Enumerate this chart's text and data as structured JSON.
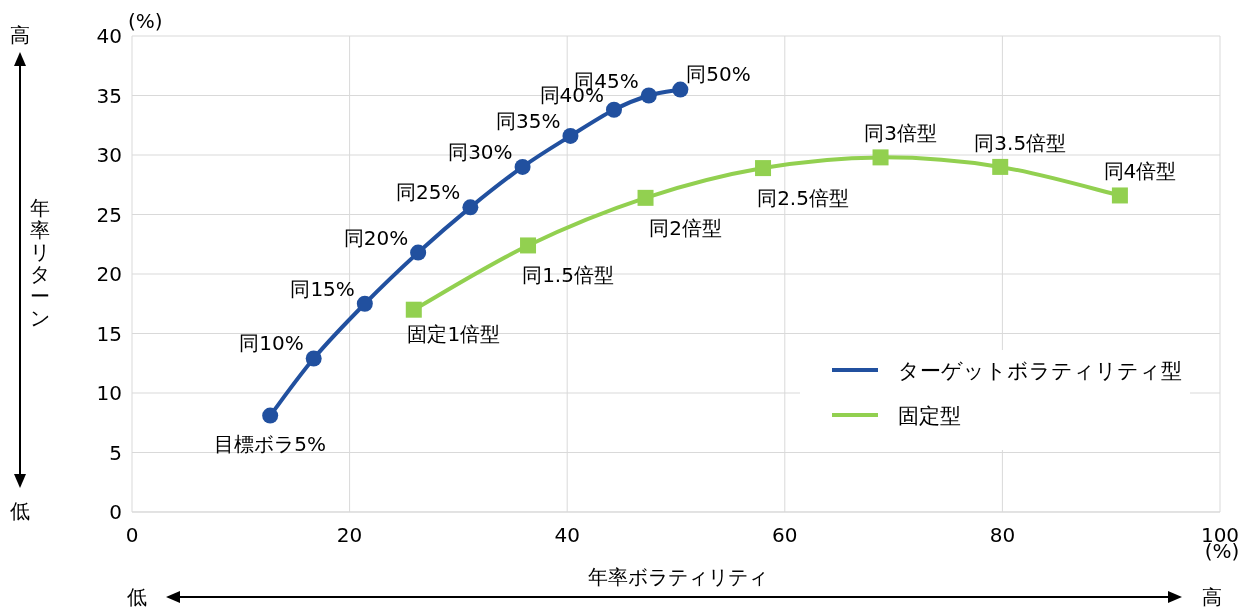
{
  "chart_data": {
    "type": "line",
    "xlabel": "年率ボラティリティ",
    "ylabel": "年率リターン",
    "xlim": [
      0,
      100
    ],
    "xticks": [
      0,
      20,
      40,
      60,
      80,
      100
    ],
    "ylim": [
      0,
      40
    ],
    "yticks": [
      0,
      5,
      10,
      15,
      20,
      25,
      30,
      35,
      40
    ],
    "grid": true,
    "legend": "right",
    "series": [
      {
        "name": "ターゲットボラティリティ型",
        "color": "#21509f",
        "marker": "circle",
        "x": [
          12.7,
          16.7,
          21.4,
          26.3,
          31.1,
          35.9,
          40.3,
          44.3,
          47.5,
          50.4
        ],
        "values": [
          8.1,
          12.9,
          17.5,
          21.8,
          25.6,
          29.0,
          31.6,
          33.8,
          35.0,
          35.5
        ]
      },
      {
        "name": "固定型",
        "color": "#92d050",
        "marker": "square",
        "x": [
          25.9,
          36.4,
          47.2,
          58.0,
          68.8,
          79.8,
          90.8
        ],
        "values": [
          17.0,
          22.4,
          26.4,
          28.9,
          29.8,
          29.0,
          26.6
        ]
      }
    ],
    "annotations": [
      {
        "text": "目標ボラ5%",
        "x": 12.7,
        "y": 8.1
      },
      {
        "text": "同10%",
        "x": 16.7,
        "y": 12.9
      },
      {
        "text": "同15%",
        "x": 21.4,
        "y": 17.5
      },
      {
        "text": "同20%",
        "x": 26.3,
        "y": 21.8
      },
      {
        "text": "同25%",
        "x": 31.1,
        "y": 25.6
      },
      {
        "text": "同30%",
        "x": 35.9,
        "y": 29.0
      },
      {
        "text": "同35%",
        "x": 40.3,
        "y": 31.6
      },
      {
        "text": "同40%",
        "x": 44.3,
        "y": 33.8
      },
      {
        "text": "同45%",
        "x": 47.5,
        "y": 35.0
      },
      {
        "text": "同50%",
        "x": 50.4,
        "y": 35.5
      },
      {
        "text": "固定1倍型",
        "x": 25.9,
        "y": 17.0
      },
      {
        "text": "同1.5倍型",
        "x": 36.4,
        "y": 22.4
      },
      {
        "text": "同2倍型",
        "x": 47.2,
        "y": 26.4
      },
      {
        "text": "同2.5倍型",
        "x": 58.0,
        "y": 28.9
      },
      {
        "text": "同3倍型",
        "x": 68.8,
        "y": 29.8
      },
      {
        "text": "同3.5倍型",
        "x": 79.8,
        "y": 29.0
      },
      {
        "text": "同4倍型",
        "x": 90.8,
        "y": 26.6
      },
      "(%)",
      "(%)",
      "高",
      "低",
      "低",
      "高"
    ]
  }
}
